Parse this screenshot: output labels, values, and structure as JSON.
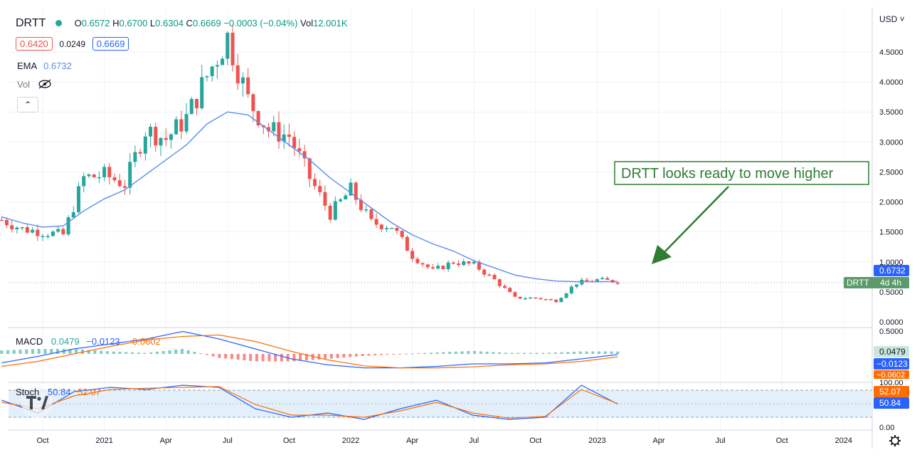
{
  "header": {
    "symbol": "DRTT",
    "open_label": "O",
    "open": "0.6572",
    "high_label": "H",
    "high": "0.6700",
    "low_label": "L",
    "low": "0.6304",
    "close_label": "C",
    "close": "0.6669",
    "change": "−0.0003 (−0.04%)",
    "vol_label": "Vol",
    "vol": "12.001K",
    "bid": "0.6420",
    "spread": "0.0249",
    "ask": "0.6669",
    "ema_label": "EMA",
    "ema_value": "0.6732",
    "vol_row_label": "Vol"
  },
  "currency": "USD",
  "callout": "DRTT looks ready to move higher",
  "colors": {
    "up": "#26a69a",
    "down": "#ef5350",
    "ema": "#5b8def",
    "macd": "#2962ff",
    "signal": "#ff6d00",
    "callout": "#2e7d32"
  },
  "chart_data": [
    {
      "type": "candlestick",
      "title": "DRTT",
      "ylim": [
        0,
        5.0
      ],
      "y_ticks": [
        "4.5000",
        "4.0000",
        "3.5000",
        "3.0000",
        "2.5000",
        "2.0000",
        "1.5000",
        "1.0000",
        "0.5000",
        "0.0000"
      ],
      "x_ticks": [
        "Oct",
        "2021",
        "Apr",
        "Jul",
        "Oct",
        "2022",
        "Apr",
        "Jul",
        "Oct",
        "2023",
        "Apr",
        "Jul",
        "Oct",
        "2024"
      ],
      "price_label": "DRTT",
      "price_label_value": "4d 4h",
      "ema_label_value": "0.6732",
      "x": [
        "2020-08",
        "2020-09",
        "2020-10",
        "2020-11",
        "2020-12",
        "2021-01",
        "2021-02",
        "2021-03",
        "2021-04",
        "2021-05",
        "2021-06",
        "2021-07",
        "2021-08",
        "2021-09",
        "2021-10",
        "2021-11",
        "2021-12",
        "2022-01",
        "2022-02",
        "2022-03",
        "2022-04",
        "2022-05",
        "2022-06",
        "2022-07",
        "2022-08",
        "2022-09",
        "2022-10",
        "2022-11",
        "2022-12",
        "2023-01",
        "2023-02"
      ],
      "close": [
        1.7,
        1.55,
        1.5,
        1.45,
        2.4,
        2.45,
        2.3,
        3.2,
        3.05,
        3.4,
        4.1,
        4.75,
        3.7,
        3.2,
        3.1,
        2.4,
        1.8,
        2.2,
        1.65,
        1.6,
        1.1,
        0.85,
        1.0,
        0.95,
        0.7,
        0.4,
        0.4,
        0.35,
        0.65,
        0.7,
        0.67
      ],
      "ema": [
        1.75,
        1.65,
        1.58,
        1.6,
        1.85,
        2.05,
        2.2,
        2.45,
        2.7,
        2.95,
        3.3,
        3.5,
        3.45,
        3.2,
        2.95,
        2.7,
        2.4,
        2.15,
        1.9,
        1.65,
        1.45,
        1.3,
        1.18,
        1.02,
        0.9,
        0.78,
        0.72,
        0.68,
        0.67,
        0.67,
        0.6732
      ]
    },
    {
      "type": "line",
      "title": "MACD",
      "ylim": [
        -0.3,
        0.5
      ],
      "y_ticks": [
        "0.5000"
      ],
      "legend": [
        "0.0479",
        "−0.0123",
        "−0.0602"
      ],
      "axis_labels": [
        "0.0479",
        "−0.0123",
        "−0.0602"
      ],
      "series": [
        {
          "values": [
            -0.18,
            -0.05,
            0.1,
            0.2,
            0.3,
            0.45,
            0.3,
            0.1,
            -0.1,
            -0.22,
            -0.28,
            -0.28,
            -0.25,
            -0.2,
            -0.2,
            -0.18,
            -0.1,
            -0.0123
          ]
        },
        {
          "values": [
            -0.25,
            -0.15,
            0.0,
            0.15,
            0.28,
            0.35,
            0.38,
            0.25,
            0.05,
            -0.12,
            -0.24,
            -0.28,
            -0.28,
            -0.26,
            -0.22,
            -0.2,
            -0.15,
            -0.0602
          ]
        }
      ]
    },
    {
      "type": "line",
      "title": "Stoch",
      "ylim": [
        0,
        100
      ],
      "y_ticks": [
        "100.00",
        "0.00"
      ],
      "legend": [
        "50.84",
        "52.07"
      ],
      "axis_labels": [
        "52.07",
        "50.84"
      ],
      "series": [
        {
          "values": [
            60,
            30,
            80,
            90,
            85,
            95,
            90,
            40,
            20,
            30,
            15,
            40,
            60,
            25,
            15,
            20,
            95,
            50.84
          ]
        },
        {
          "values": [
            55,
            40,
            70,
            85,
            88,
            90,
            92,
            50,
            25,
            25,
            20,
            35,
            55,
            30,
            18,
            22,
            85,
            52.07
          ]
        }
      ]
    }
  ]
}
